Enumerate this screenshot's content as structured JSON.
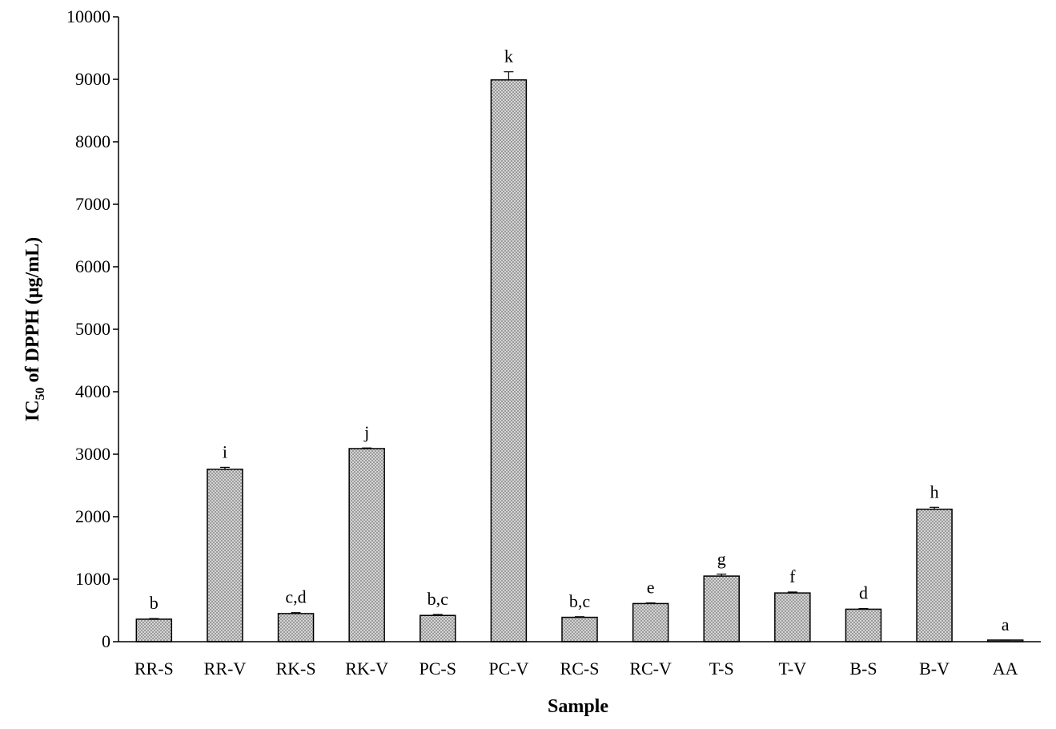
{
  "chart_data": {
    "type": "bar",
    "title": "",
    "xlabel": "Sample",
    "ylabel": {
      "prefix": "IC",
      "subscript": "50",
      "suffix": " of DPPH (μg/mL)"
    },
    "ylim": [
      0,
      10000
    ],
    "yticks": [
      0,
      1000,
      2000,
      3000,
      4000,
      5000,
      6000,
      7000,
      8000,
      9000,
      10000
    ],
    "grid": false,
    "legend": "none",
    "categories": [
      "RR-S",
      "RR-V",
      "RK-S",
      "RK-V",
      "PC-S",
      "PC-V",
      "RC-S",
      "RC-V",
      "T-S",
      "T-V",
      "B-S",
      "B-V",
      "AA"
    ],
    "values": [
      360,
      2760,
      450,
      3090,
      420,
      8990,
      390,
      610,
      1050,
      780,
      520,
      2120,
      20
    ],
    "errors": [
      10,
      30,
      15,
      10,
      15,
      130,
      10,
      10,
      30,
      15,
      10,
      30,
      5
    ],
    "significance_labels": [
      "b",
      "i",
      "c,d",
      "j",
      "b,c",
      "k",
      "b,c",
      "e",
      "g",
      "f",
      "d",
      "h",
      "a"
    ],
    "colors": {
      "bar_fill": "#9a9a9a",
      "bar_pattern": "#ffffff",
      "bar_stroke": "#000000",
      "axis": "#000000"
    }
  }
}
